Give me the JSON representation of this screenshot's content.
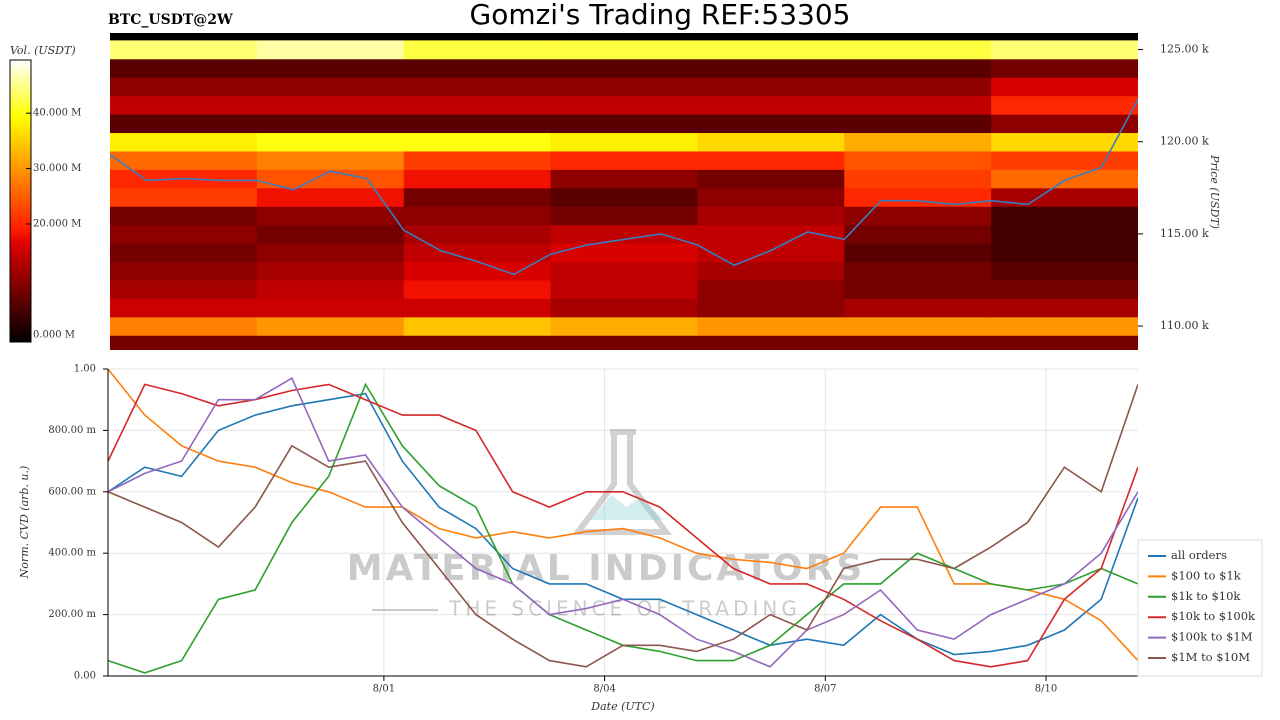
{
  "title": "Gomzi's Trading REF:53305",
  "watermark": {
    "name": "MATERIAL INDICATORS",
    "tagline": "THE SCIENCE OF TRADING"
  },
  "chart_data": [
    {
      "type": "heatmap",
      "title": "BTC_USDT@2W",
      "y_label": "Price (USDT)",
      "xlim": [
        -3.75,
        10.25
      ],
      "ylim": [
        108700,
        125900
      ],
      "yticks": [
        {
          "value": 110000,
          "label": "110.00 k"
        },
        {
          "value": 115000,
          "label": "115.00 k"
        },
        {
          "value": 120000,
          "label": "120.00 k"
        },
        {
          "value": 125000,
          "label": "125.00 k"
        }
      ],
      "x_edges": [
        -3.75,
        -1.75,
        0.25,
        2.25,
        4.25,
        6.25,
        8.25,
        10.25
      ],
      "y_edges": [
        108500,
        109500,
        110500,
        111500,
        112500,
        113500,
        114500,
        115500,
        116500,
        117500,
        118500,
        119500,
        120500,
        121500,
        122500,
        123500,
        124500,
        125500
      ],
      "z": [
        [
          8000000,
          8000000,
          8000000,
          8000000,
          8000000,
          8000000,
          8000000
        ],
        [
          28000000,
          30000000,
          34000000,
          32000000,
          30000000,
          30000000,
          30000000
        ],
        [
          15000000,
          15000000,
          15000000,
          12000000,
          10000000,
          12000000,
          12000000
        ],
        [
          12000000,
          14000000,
          18000000,
          14000000,
          10000000,
          8000000,
          8000000
        ],
        [
          10000000,
          12000000,
          16000000,
          14000000,
          12000000,
          8000000,
          6000000
        ],
        [
          8000000,
          10000000,
          14000000,
          16000000,
          14000000,
          6000000,
          4000000
        ],
        [
          10000000,
          8000000,
          12000000,
          14000000,
          14000000,
          8000000,
          4000000
        ],
        [
          8000000,
          10000000,
          10000000,
          8000000,
          12000000,
          10000000,
          4000000
        ],
        [
          22000000,
          18000000,
          8000000,
          6000000,
          10000000,
          20000000,
          12000000
        ],
        [
          20000000,
          24000000,
          18000000,
          10000000,
          8000000,
          22000000,
          26000000
        ],
        [
          26000000,
          28000000,
          22000000,
          20000000,
          20000000,
          24000000,
          22000000
        ],
        [
          38000000,
          40000000,
          40000000,
          38000000,
          36000000,
          32000000,
          36000000
        ],
        [
          6000000,
          6000000,
          6000000,
          6000000,
          6000000,
          6000000,
          10000000
        ],
        [
          14000000,
          14000000,
          14000000,
          14000000,
          14000000,
          14000000,
          20000000
        ],
        [
          10000000,
          10000000,
          10000000,
          10000000,
          10000000,
          10000000,
          16000000
        ],
        [
          6000000,
          6000000,
          6000000,
          6000000,
          6000000,
          6000000,
          8000000
        ],
        [
          44000000,
          46000000,
          42000000,
          42000000,
          42000000,
          42000000,
          44000000
        ]
      ],
      "colorbar": {
        "label": "Vol. (USDT)",
        "lim": [
          -1300000,
          49600000
        ],
        "ticks": [
          {
            "value": 0,
            "label": "0.000 M"
          },
          {
            "value": 20000000,
            "label": "20.000 M"
          },
          {
            "value": 30000000,
            "label": "30.000 M"
          },
          {
            "value": 40000000,
            "label": "40.000 M"
          }
        ]
      },
      "x": [
        -3.75,
        -3.25,
        -2.75,
        -2.25,
        -1.75,
        -1.25,
        -0.75,
        -0.25,
        0.25,
        0.75,
        1.25,
        1.75,
        2.25,
        2.75,
        3.25,
        3.75,
        4.25,
        4.75,
        5.25,
        5.75,
        6.25,
        6.75,
        7.25,
        7.75,
        8.25,
        8.75,
        9.25,
        9.75,
        10.25
      ],
      "series": [
        {
          "color": "#3a7dc0",
          "values": [
            119300,
            117900,
            118000,
            117900,
            117900,
            117400,
            118400,
            118000,
            115200,
            114100,
            113500,
            112800,
            113900,
            114400,
            114700,
            115000,
            114400,
            113300,
            114100,
            115100,
            114700,
            116800,
            116800,
            116600,
            116800,
            116600,
            117900,
            118600,
            122300
          ]
        }
      ]
    },
    {
      "type": "line",
      "y_label": "Norm. CVD (arb. u.)",
      "x_label": "Date (UTC)",
      "xlim": [
        -3.75,
        10.25
      ],
      "ylim": [
        0,
        1
      ],
      "grid": true,
      "legend": "right",
      "xticks": [
        {
          "value": 0,
          "label": "8/01"
        },
        {
          "value": 3,
          "label": "8/04"
        },
        {
          "value": 6,
          "label": "8/07"
        },
        {
          "value": 9,
          "label": "8/10"
        }
      ],
      "yticks": [
        {
          "value": 0,
          "label": "0.00"
        },
        {
          "value": 0.2,
          "label": "200.00 m"
        },
        {
          "value": 0.4,
          "label": "400.00 m"
        },
        {
          "value": 0.6,
          "label": "600.00 m"
        },
        {
          "value": 0.8,
          "label": "800.00 m"
        },
        {
          "value": 1,
          "label": "1.00"
        }
      ],
      "x": [
        -3.75,
        -3.25,
        -2.75,
        -2.25,
        -1.75,
        -1.25,
        -0.75,
        -0.25,
        0.25,
        0.75,
        1.25,
        1.75,
        2.25,
        2.75,
        3.25,
        3.75,
        4.25,
        4.75,
        5.25,
        5.75,
        6.25,
        6.75,
        7.25,
        7.75,
        8.25,
        8.75,
        9.25,
        9.75,
        10.25
      ],
      "series": [
        {
          "name": "all orders",
          "color": "#1f77b4",
          "values": [
            0.6,
            0.68,
            0.65,
            0.8,
            0.85,
            0.88,
            0.9,
            0.92,
            0.7,
            0.55,
            0.48,
            0.35,
            0.3,
            0.3,
            0.25,
            0.25,
            0.2,
            0.15,
            0.1,
            0.12,
            0.1,
            0.2,
            0.12,
            0.07,
            0.08,
            0.1,
            0.15,
            0.25,
            0.58
          ]
        },
        {
          "name": "$100 to $1k",
          "color": "#ff7f0e",
          "values": [
            1.0,
            0.85,
            0.75,
            0.7,
            0.68,
            0.63,
            0.6,
            0.55,
            0.55,
            0.48,
            0.45,
            0.47,
            0.45,
            0.47,
            0.48,
            0.45,
            0.4,
            0.38,
            0.37,
            0.35,
            0.4,
            0.55,
            0.55,
            0.3,
            0.3,
            0.28,
            0.25,
            0.18,
            0.05
          ]
        },
        {
          "name": "$1k to $10k",
          "color": "#2ca02c",
          "values": [
            0.05,
            0.01,
            0.05,
            0.25,
            0.28,
            0.5,
            0.65,
            0.95,
            0.75,
            0.62,
            0.55,
            0.3,
            0.2,
            0.15,
            0.1,
            0.08,
            0.05,
            0.05,
            0.1,
            0.2,
            0.3,
            0.3,
            0.4,
            0.35,
            0.3,
            0.28,
            0.3,
            0.35,
            0.3
          ]
        },
        {
          "name": "$10k to $100k",
          "color": "#d62728",
          "values": [
            0.7,
            0.95,
            0.92,
            0.88,
            0.9,
            0.93,
            0.95,
            0.9,
            0.85,
            0.85,
            0.8,
            0.6,
            0.55,
            0.6,
            0.6,
            0.55,
            0.45,
            0.35,
            0.3,
            0.3,
            0.25,
            0.18,
            0.12,
            0.05,
            0.03,
            0.05,
            0.25,
            0.35,
            0.68
          ]
        },
        {
          "name": "$100k to $1M",
          "color": "#9467bd",
          "values": [
            0.6,
            0.66,
            0.7,
            0.9,
            0.9,
            0.97,
            0.7,
            0.72,
            0.55,
            0.45,
            0.35,
            0.3,
            0.2,
            0.22,
            0.25,
            0.2,
            0.12,
            0.08,
            0.03,
            0.15,
            0.2,
            0.28,
            0.15,
            0.12,
            0.2,
            0.25,
            0.3,
            0.4,
            0.6
          ]
        },
        {
          "name": "$1M to $10M",
          "color": "#8c564b",
          "values": [
            0.6,
            0.55,
            0.5,
            0.42,
            0.55,
            0.75,
            0.68,
            0.7,
            0.5,
            0.35,
            0.2,
            0.12,
            0.05,
            0.03,
            0.1,
            0.1,
            0.08,
            0.12,
            0.2,
            0.15,
            0.35,
            0.38,
            0.38,
            0.35,
            0.42,
            0.5,
            0.68,
            0.6,
            0.95
          ]
        }
      ]
    }
  ]
}
